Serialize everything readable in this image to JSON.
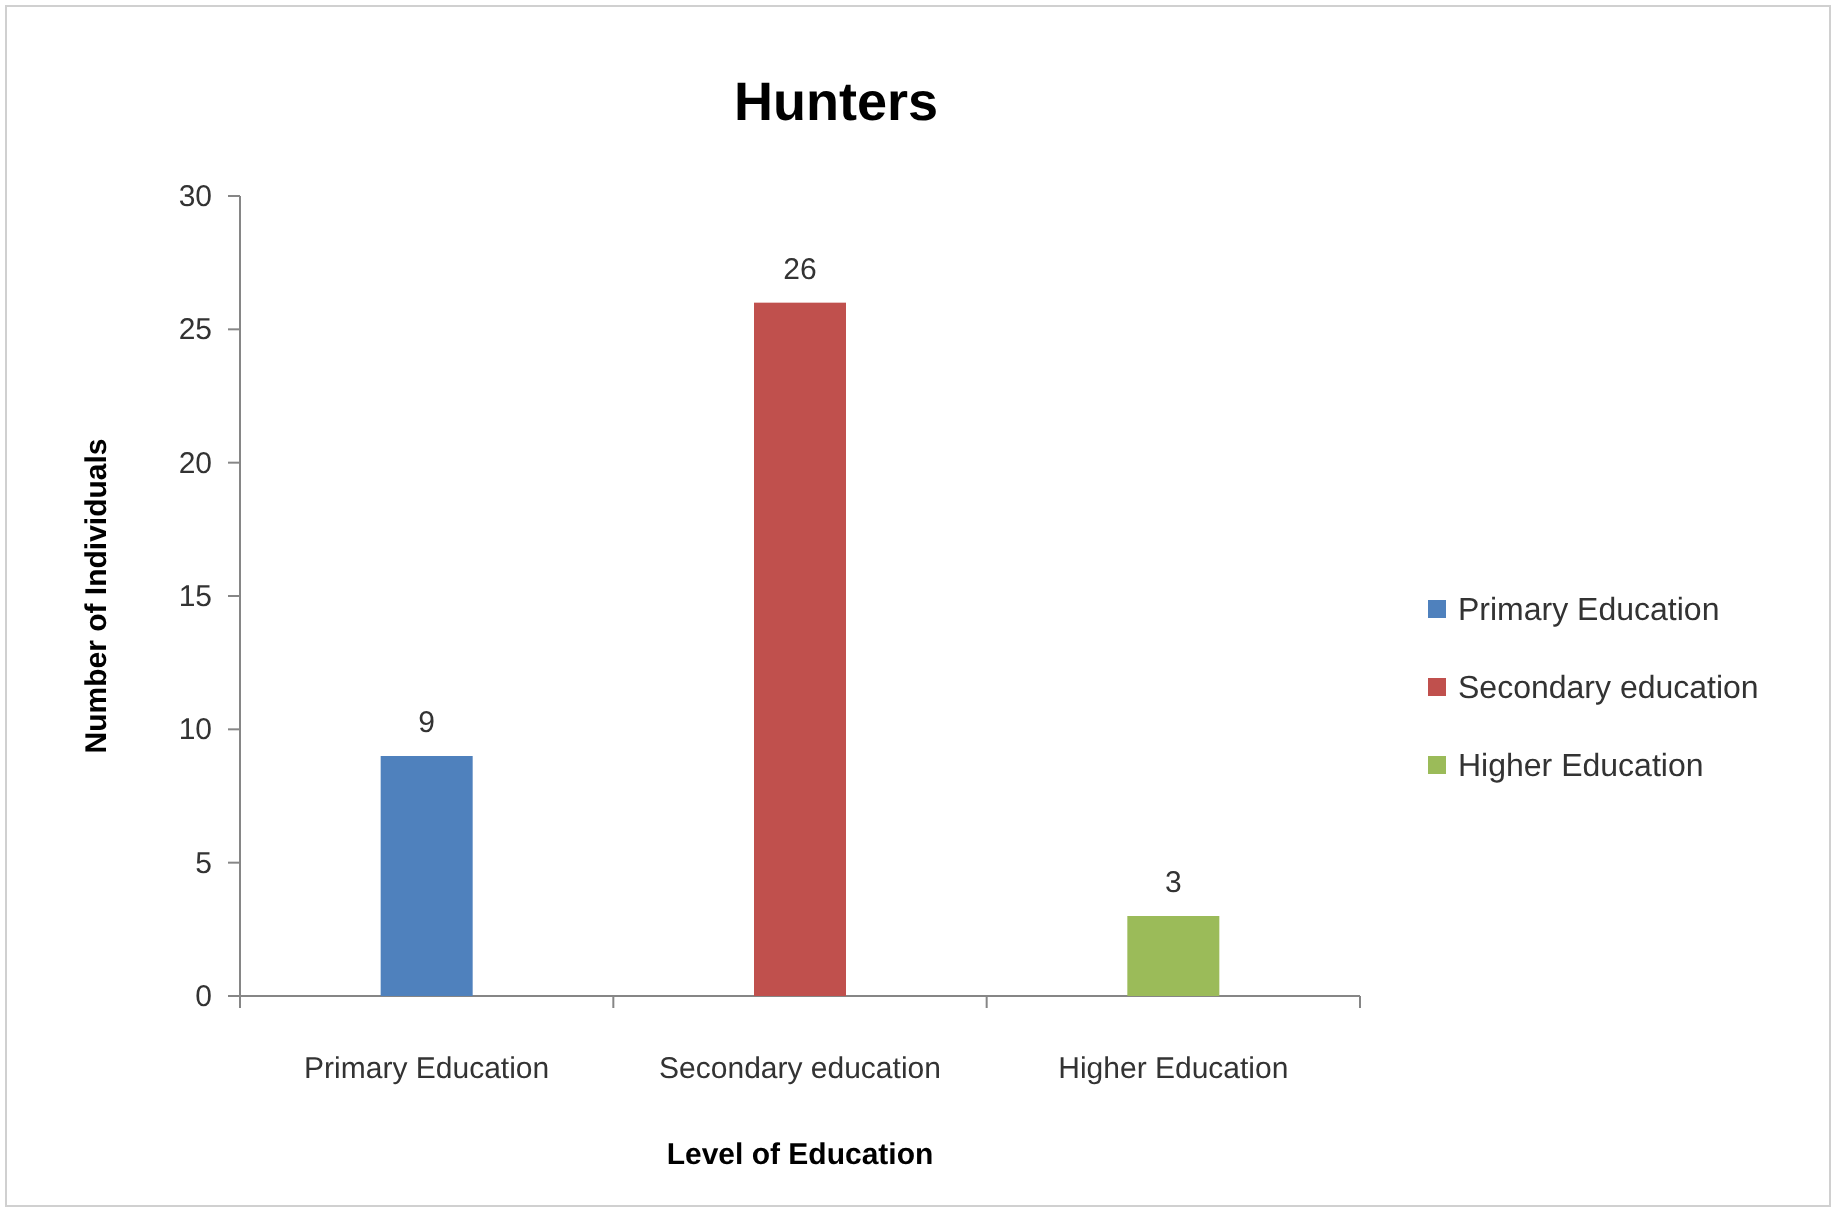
{
  "chart_data": {
    "type": "bar",
    "title": "Hunters",
    "xlabel": "Level of Education",
    "ylabel": "Number of Individuals",
    "categories": [
      "Primary Education",
      "Secondary education",
      "Higher Education"
    ],
    "series": [
      {
        "name": "Primary Education",
        "color": "#4f81bd",
        "values": [
          9,
          null,
          null
        ]
      },
      {
        "name": "Secondary education",
        "color": "#c0504d",
        "values": [
          null,
          26,
          null
        ]
      },
      {
        "name": "Higher Education",
        "color": "#9bbb59",
        "values": [
          null,
          null,
          3
        ]
      }
    ],
    "stacked": true,
    "ylim": [
      0,
      30
    ],
    "yticks": [
      0,
      5,
      10,
      15,
      20,
      25,
      30
    ],
    "grid": false,
    "legend": "right",
    "data_labels": true
  }
}
